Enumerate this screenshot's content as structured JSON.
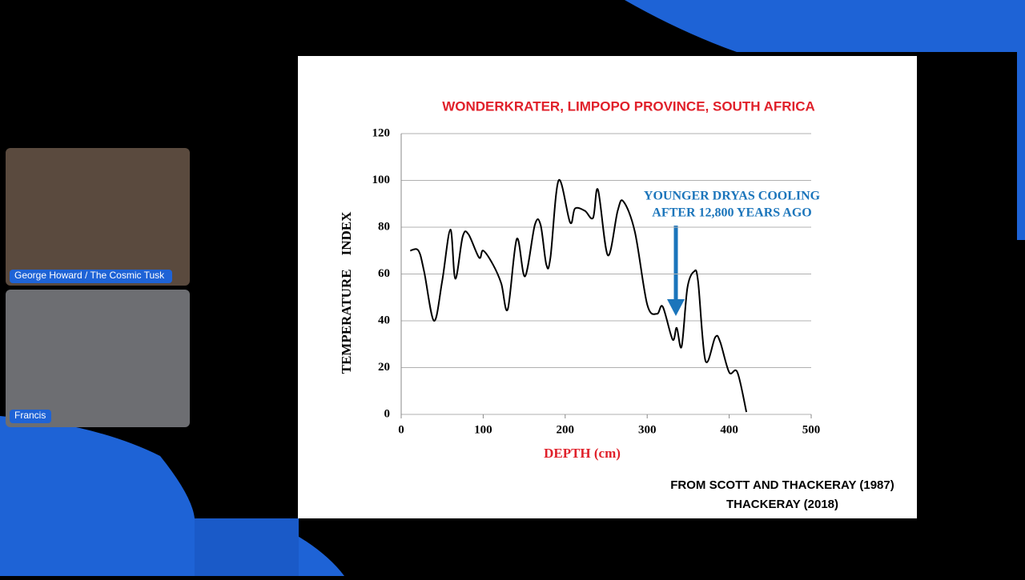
{
  "participants": [
    {
      "name": "George Howard / The Cosmic Tusk"
    },
    {
      "name": "Francis"
    }
  ],
  "chart_data": {
    "type": "line",
    "title": "WONDERKRATER, LIMPOPO PROVINCE, SOUTH AFRICA",
    "x_label": "DEPTH (cm)",
    "y_label": "TEMPERATURE    INDEX",
    "annotation": [
      "YOUNGER  DRYAS COOLING",
      "AFTER 12,800 YEARS AGO"
    ],
    "source": [
      "FROM SCOTT AND THACKERAY (1987)",
      "THACKERAY (2018)"
    ],
    "x": [
      11,
      21,
      28,
      40,
      50,
      60,
      66,
      75,
      82,
      95,
      100,
      112,
      122,
      130,
      141,
      151,
      163,
      170,
      177,
      182,
      192,
      206,
      212,
      224,
      234,
      240,
      252,
      264,
      271,
      285,
      300,
      312,
      319,
      331,
      336,
      342,
      349,
      357,
      362,
      371,
      383,
      389,
      400,
      410,
      421
    ],
    "values": [
      70,
      70,
      61,
      40,
      57,
      79,
      58,
      76,
      77,
      67,
      70,
      64,
      56,
      45,
      75,
      59,
      81,
      81,
      64,
      67,
      100,
      82,
      88,
      87,
      84,
      96,
      68,
      87,
      91,
      78,
      47,
      43,
      46,
      32,
      37,
      29,
      54,
      61,
      57,
      23,
      33,
      31,
      18,
      18,
      1
    ],
    "color": "#000000",
    "xlim": [
      0,
      500
    ],
    "xticks": [
      0,
      100,
      200,
      300,
      400,
      500
    ],
    "ylim": [
      0,
      120
    ],
    "yticks": [
      0,
      20,
      40,
      60,
      80,
      100,
      120
    ],
    "grid": true
  }
}
